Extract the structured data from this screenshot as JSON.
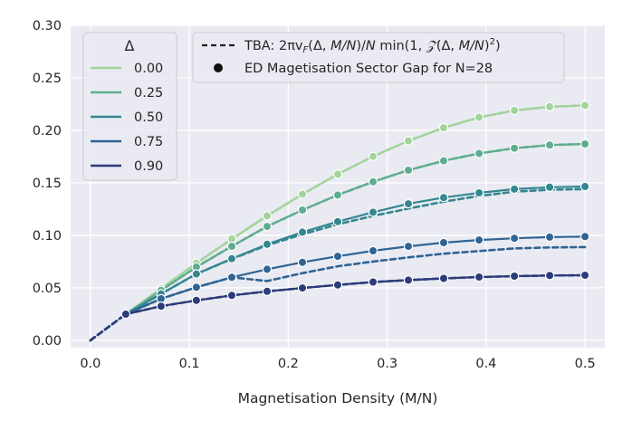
{
  "chart_data": {
    "type": "line",
    "title": "",
    "xlabel": "Magnetisation Density (M/N)",
    "ylabel": "",
    "xlim": [
      -0.02,
      0.52
    ],
    "ylim": [
      -0.007,
      0.3
    ],
    "xticks": [
      0.0,
      0.1,
      0.2,
      0.3,
      0.4,
      0.5
    ],
    "xtick_labels": [
      "0.0",
      "0.1",
      "0.2",
      "0.3",
      "0.4",
      "0.5"
    ],
    "yticks": [
      0.0,
      0.05,
      0.1,
      0.15,
      0.2,
      0.25,
      0.3
    ],
    "ytick_labels": [
      "0.00",
      "0.05",
      "0.10",
      "0.15",
      "0.20",
      "0.25",
      "0.30"
    ],
    "grid": true,
    "x_ed": [
      0.0357,
      0.0714,
      0.1071,
      0.1429,
      0.1786,
      0.2143,
      0.25,
      0.2857,
      0.3214,
      0.3571,
      0.3929,
      0.4286,
      0.4643,
      0.5
    ],
    "x_tba": [
      0.0,
      0.0357,
      0.0714,
      0.1071,
      0.1429,
      0.1786,
      0.2143,
      0.25,
      0.2857,
      0.3214,
      0.3571,
      0.3929,
      0.4286,
      0.4643,
      0.5
    ],
    "legend_delta": {
      "title": "Δ",
      "position": "top-left"
    },
    "legend_style": {
      "position": "top-center",
      "tba_label": "TBA: 2πv_F(Δ, M/N)/N min(1, Z(Δ, M/N)²)",
      "tba_label_parts": {
        "pre": "TBA: ",
        "formula": "2πv",
        "sub": "F",
        "mid": "(Δ, ",
        "mn1": "M/N",
        "post1": ")/",
        "n": "N",
        "min": " min(1, ",
        "z": "𝒵",
        "args": "(Δ, ",
        "mn2": "M/N",
        "close": ")",
        "sup": "2",
        "end": ")"
      },
      "ed_label": "ED Magetisation Sector Gap for N=28"
    },
    "series": [
      {
        "name": "0.00",
        "color": "#a2d49b",
        "ed": [
          0.0249,
          0.0494,
          0.0734,
          0.0966,
          0.1186,
          0.1392,
          0.1582,
          0.1752,
          0.19,
          0.2025,
          0.2124,
          0.2189,
          0.2225,
          0.2238
        ],
        "tba": [
          0.0,
          0.0249,
          0.0494,
          0.0734,
          0.0966,
          0.1186,
          0.1392,
          0.1582,
          0.1752,
          0.19,
          0.2025,
          0.2124,
          0.2189,
          0.2225,
          0.2238
        ]
      },
      {
        "name": "0.25",
        "color": "#5ead8f",
        "ed": [
          0.0249,
          0.0476,
          0.0698,
          0.0896,
          0.1085,
          0.1241,
          0.1384,
          0.151,
          0.162,
          0.171,
          0.178,
          0.183,
          0.186,
          0.187
        ],
        "tba": [
          0.0,
          0.0249,
          0.0476,
          0.0698,
          0.0896,
          0.1085,
          0.1241,
          0.1384,
          0.151,
          0.162,
          0.171,
          0.178,
          0.183,
          0.186,
          0.187
        ]
      },
      {
        "name": "0.50",
        "color": "#348790",
        "ed": [
          0.0249,
          0.0442,
          0.0632,
          0.0778,
          0.0915,
          0.103,
          0.113,
          0.122,
          0.13,
          0.136,
          0.1405,
          0.144,
          0.1458,
          0.1465
        ],
        "tba": [
          0.0,
          0.0249,
          0.0442,
          0.0632,
          0.0775,
          0.0905,
          0.101,
          0.1105,
          0.1185,
          0.1255,
          0.132,
          0.1375,
          0.1415,
          0.1435,
          0.144
        ]
      },
      {
        "name": "0.75",
        "color": "#2f6494",
        "ed": [
          0.0249,
          0.0396,
          0.0505,
          0.06,
          0.0677,
          0.0743,
          0.08,
          0.0853,
          0.0895,
          0.093,
          0.0955,
          0.0972,
          0.0983,
          0.0988
        ],
        "tba": [
          0.0,
          0.0249,
          0.0396,
          0.0505,
          0.06,
          0.0565,
          0.064,
          0.0705,
          0.075,
          0.079,
          0.0825,
          0.085,
          0.0875,
          0.0885,
          0.0888
        ]
      },
      {
        "name": "0.90",
        "color": "#2c3b79",
        "ed": [
          0.0249,
          0.0325,
          0.038,
          0.0428,
          0.0466,
          0.0498,
          0.0528,
          0.0555,
          0.0573,
          0.059,
          0.0603,
          0.0611,
          0.0617,
          0.062
        ],
        "tba": [
          0.0,
          0.0249,
          0.0325,
          0.038,
          0.0428,
          0.0466,
          0.0498,
          0.0528,
          0.0555,
          0.0573,
          0.059,
          0.0603,
          0.0611,
          0.0617,
          0.062
        ]
      }
    ]
  }
}
